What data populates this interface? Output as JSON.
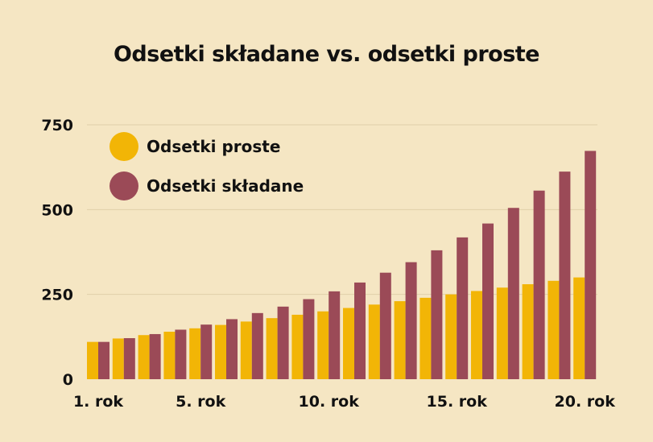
{
  "chart_data": {
    "type": "bar",
    "title": "Odsetki składane vs. odsetki proste",
    "xlabel": "",
    "ylabel": "",
    "ylim": [
      0,
      750
    ],
    "yticks": [
      0,
      250,
      500,
      750
    ],
    "categories": [
      "1",
      "2",
      "3",
      "4",
      "5",
      "6",
      "7",
      "8",
      "9",
      "10",
      "11",
      "12",
      "13",
      "14",
      "15",
      "16",
      "17",
      "18",
      "19",
      "20"
    ],
    "x_tick_labels": [
      {
        "category_index": 0,
        "label": "1. rok"
      },
      {
        "category_index": 4,
        "label": "5. rok"
      },
      {
        "category_index": 9,
        "label": "10. rok"
      },
      {
        "category_index": 14,
        "label": "15. rok"
      },
      {
        "category_index": 19,
        "label": "20. rok"
      }
    ],
    "series": [
      {
        "name": "Odsetki proste",
        "color": "#f2b506",
        "values": [
          110,
          120,
          130,
          140,
          150,
          160,
          170,
          180,
          190,
          200,
          210,
          220,
          230,
          240,
          250,
          260,
          270,
          280,
          290,
          300
        ]
      },
      {
        "name": "Odsetki składane",
        "color": "#9b4a57",
        "values": [
          110,
          121,
          133,
          146,
          161,
          177,
          195,
          214,
          236,
          259,
          285,
          314,
          345,
          380,
          418,
          459,
          505,
          556,
          612,
          673
        ]
      }
    ],
    "legend_position": "top-left",
    "grid": true,
    "grid_color": "#e0cfa8"
  }
}
